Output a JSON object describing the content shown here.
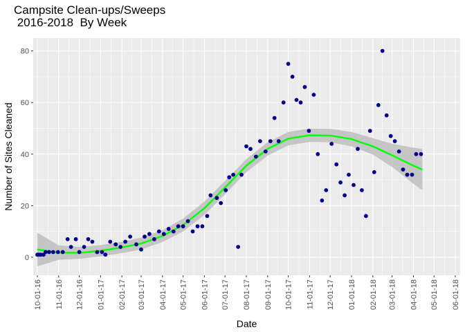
{
  "chart_data": {
    "type": "scatter",
    "title": "Campsite Clean-ups/Sweeps\n 2016-2018  By Week",
    "xlabel": "Date",
    "ylabel": "Number of Sites Cleaned",
    "xlim": [
      "2016-09-25",
      "2018-06-08"
    ],
    "ylim": [
      -7,
      85
    ],
    "grid": true,
    "x_ticks": [
      {
        "date": "2016-10-01",
        "label": "10-01-16"
      },
      {
        "date": "2016-11-01",
        "label": "11-01-16"
      },
      {
        "date": "2016-12-01",
        "label": "12-01-16"
      },
      {
        "date": "2017-01-01",
        "label": "01-01-17"
      },
      {
        "date": "2017-02-01",
        "label": "02-01-17"
      },
      {
        "date": "2017-03-01",
        "label": "03-01-17"
      },
      {
        "date": "2017-04-01",
        "label": "04-01-17"
      },
      {
        "date": "2017-05-01",
        "label": "05-01-17"
      },
      {
        "date": "2017-06-01",
        "label": "06-01-17"
      },
      {
        "date": "2017-07-01",
        "label": "07-01-17"
      },
      {
        "date": "2017-08-01",
        "label": "08-01-17"
      },
      {
        "date": "2017-09-01",
        "label": "09-01-17"
      },
      {
        "date": "2017-10-01",
        "label": "10-01-17"
      },
      {
        "date": "2017-11-01",
        "label": "11-01-17"
      },
      {
        "date": "2017-12-01",
        "label": "12-01-17"
      },
      {
        "date": "2018-01-01",
        "label": "01-01-18"
      },
      {
        "date": "2018-02-01",
        "label": "02-01-18"
      },
      {
        "date": "2018-03-01",
        "label": "03-01-18"
      },
      {
        "date": "2018-04-01",
        "label": "04-01-18"
      },
      {
        "date": "2018-05-01",
        "label": "05-01-18"
      },
      {
        "date": "2018-06-01",
        "label": "06-01-18"
      }
    ],
    "y_ticks": [
      0,
      20,
      40,
      60,
      80
    ],
    "colors": {
      "panel": "#ebebeb",
      "grid": "#ffffff",
      "points": "#00008b",
      "smooth_line": "#00ff00",
      "ribbon": "#bebebe"
    },
    "points": [
      {
        "x": "2016-10-01",
        "y": 1
      },
      {
        "x": "2016-10-03",
        "y": 1
      },
      {
        "x": "2016-10-06",
        "y": 1
      },
      {
        "x": "2016-10-10",
        "y": 1
      },
      {
        "x": "2016-10-13",
        "y": 2
      },
      {
        "x": "2016-10-18",
        "y": 2
      },
      {
        "x": "2016-10-24",
        "y": 2
      },
      {
        "x": "2016-10-31",
        "y": 2
      },
      {
        "x": "2016-11-07",
        "y": 2
      },
      {
        "x": "2016-11-14",
        "y": 7
      },
      {
        "x": "2016-11-19",
        "y": 4
      },
      {
        "x": "2016-11-26",
        "y": 7
      },
      {
        "x": "2016-12-01",
        "y": 2
      },
      {
        "x": "2016-12-08",
        "y": 4
      },
      {
        "x": "2016-12-14",
        "y": 7
      },
      {
        "x": "2016-12-20",
        "y": 6
      },
      {
        "x": "2016-12-27",
        "y": 2
      },
      {
        "x": "2017-01-03",
        "y": 2
      },
      {
        "x": "2017-01-08",
        "y": 1
      },
      {
        "x": "2017-01-15",
        "y": 6
      },
      {
        "x": "2017-01-23",
        "y": 5
      },
      {
        "x": "2017-01-30",
        "y": 4
      },
      {
        "x": "2017-02-06",
        "y": 6
      },
      {
        "x": "2017-02-13",
        "y": 8
      },
      {
        "x": "2017-02-22",
        "y": 5
      },
      {
        "x": "2017-03-01",
        "y": 3
      },
      {
        "x": "2017-03-06",
        "y": 8
      },
      {
        "x": "2017-03-13",
        "y": 9
      },
      {
        "x": "2017-03-20",
        "y": 7
      },
      {
        "x": "2017-03-27",
        "y": 10
      },
      {
        "x": "2017-04-03",
        "y": 9
      },
      {
        "x": "2017-04-10",
        "y": 11
      },
      {
        "x": "2017-04-17",
        "y": 10
      },
      {
        "x": "2017-04-24",
        "y": 12
      },
      {
        "x": "2017-05-01",
        "y": 12
      },
      {
        "x": "2017-05-08",
        "y": 14
      },
      {
        "x": "2017-05-15",
        "y": 10
      },
      {
        "x": "2017-05-22",
        "y": 12
      },
      {
        "x": "2017-05-29",
        "y": 12
      },
      {
        "x": "2017-06-05",
        "y": 16
      },
      {
        "x": "2017-06-10",
        "y": 24
      },
      {
        "x": "2017-06-19",
        "y": 23
      },
      {
        "x": "2017-06-25",
        "y": 21
      },
      {
        "x": "2017-07-02",
        "y": 26
      },
      {
        "x": "2017-07-07",
        "y": 31
      },
      {
        "x": "2017-07-13",
        "y": 32
      },
      {
        "x": "2017-07-20",
        "y": 4
      },
      {
        "x": "2017-07-25",
        "y": 32
      },
      {
        "x": "2017-08-01",
        "y": 43
      },
      {
        "x": "2017-08-07",
        "y": 42
      },
      {
        "x": "2017-08-15",
        "y": 39
      },
      {
        "x": "2017-08-21",
        "y": 45
      },
      {
        "x": "2017-08-29",
        "y": 41
      },
      {
        "x": "2017-09-05",
        "y": 45
      },
      {
        "x": "2017-09-11",
        "y": 54
      },
      {
        "x": "2017-09-17",
        "y": 45
      },
      {
        "x": "2017-09-24",
        "y": 60
      },
      {
        "x": "2017-10-01",
        "y": 75
      },
      {
        "x": "2017-10-07",
        "y": 70
      },
      {
        "x": "2017-10-13",
        "y": 61
      },
      {
        "x": "2017-10-19",
        "y": 60
      },
      {
        "x": "2017-10-25",
        "y": 66
      },
      {
        "x": "2017-10-31",
        "y": 49
      },
      {
        "x": "2017-11-07",
        "y": 63
      },
      {
        "x": "2017-11-13",
        "y": 40
      },
      {
        "x": "2017-11-19",
        "y": 22
      },
      {
        "x": "2017-11-25",
        "y": 26
      },
      {
        "x": "2017-12-03",
        "y": 44
      },
      {
        "x": "2017-12-10",
        "y": 36
      },
      {
        "x": "2017-12-16",
        "y": 29
      },
      {
        "x": "2017-12-22",
        "y": 24
      },
      {
        "x": "2017-12-28",
        "y": 32
      },
      {
        "x": "2018-01-04",
        "y": 28
      },
      {
        "x": "2018-01-10",
        "y": 42
      },
      {
        "x": "2018-01-16",
        "y": 26
      },
      {
        "x": "2018-01-22",
        "y": 16
      },
      {
        "x": "2018-01-28",
        "y": 49
      },
      {
        "x": "2018-02-03",
        "y": 33
      },
      {
        "x": "2018-02-09",
        "y": 59
      },
      {
        "x": "2018-02-15",
        "y": 80
      },
      {
        "x": "2018-02-21",
        "y": 55
      },
      {
        "x": "2018-02-27",
        "y": 47
      },
      {
        "x": "2018-03-05",
        "y": 45
      },
      {
        "x": "2018-03-11",
        "y": 41
      },
      {
        "x": "2018-03-17",
        "y": 34
      },
      {
        "x": "2018-03-23",
        "y": 32
      },
      {
        "x": "2018-03-30",
        "y": 32
      },
      {
        "x": "2018-04-05",
        "y": 40
      },
      {
        "x": "2018-04-12",
        "y": 40
      }
    ],
    "smooth": [
      {
        "x": "2016-10-01",
        "y": 3.0,
        "lo": -3.5,
        "hi": 9.5
      },
      {
        "x": "2016-11-01",
        "y": 1.8,
        "lo": -1.0,
        "hi": 4.6
      },
      {
        "x": "2016-12-01",
        "y": 1.7,
        "lo": -0.6,
        "hi": 4.0
      },
      {
        "x": "2017-01-01",
        "y": 2.5,
        "lo": 0.3,
        "hi": 4.7
      },
      {
        "x": "2017-02-01",
        "y": 3.8,
        "lo": 1.6,
        "hi": 6.0
      },
      {
        "x": "2017-03-01",
        "y": 5.3,
        "lo": 3.0,
        "hi": 7.6
      },
      {
        "x": "2017-04-01",
        "y": 8.2,
        "lo": 5.9,
        "hi": 10.5
      },
      {
        "x": "2017-05-01",
        "y": 12.5,
        "lo": 10.0,
        "hi": 15.0
      },
      {
        "x": "2017-06-01",
        "y": 19.0,
        "lo": 16.4,
        "hi": 21.6
      },
      {
        "x": "2017-07-01",
        "y": 27.0,
        "lo": 24.4,
        "hi": 29.6
      },
      {
        "x": "2017-08-01",
        "y": 35.5,
        "lo": 33.0,
        "hi": 38.0
      },
      {
        "x": "2017-09-01",
        "y": 42.0,
        "lo": 39.4,
        "hi": 44.6
      },
      {
        "x": "2017-10-01",
        "y": 46.0,
        "lo": 43.4,
        "hi": 48.6
      },
      {
        "x": "2017-11-01",
        "y": 47.3,
        "lo": 44.7,
        "hi": 49.9
      },
      {
        "x": "2017-12-01",
        "y": 47.2,
        "lo": 44.6,
        "hi": 49.8
      },
      {
        "x": "2018-01-01",
        "y": 45.8,
        "lo": 43.0,
        "hi": 48.6
      },
      {
        "x": "2018-02-01",
        "y": 43.0,
        "lo": 39.8,
        "hi": 46.2
      },
      {
        "x": "2018-03-01",
        "y": 39.5,
        "lo": 35.0,
        "hi": 44.0
      },
      {
        "x": "2018-04-01",
        "y": 35.5,
        "lo": 28.5,
        "hi": 42.5
      },
      {
        "x": "2018-04-14",
        "y": 34.0,
        "lo": 26.0,
        "hi": 42.0
      }
    ]
  }
}
